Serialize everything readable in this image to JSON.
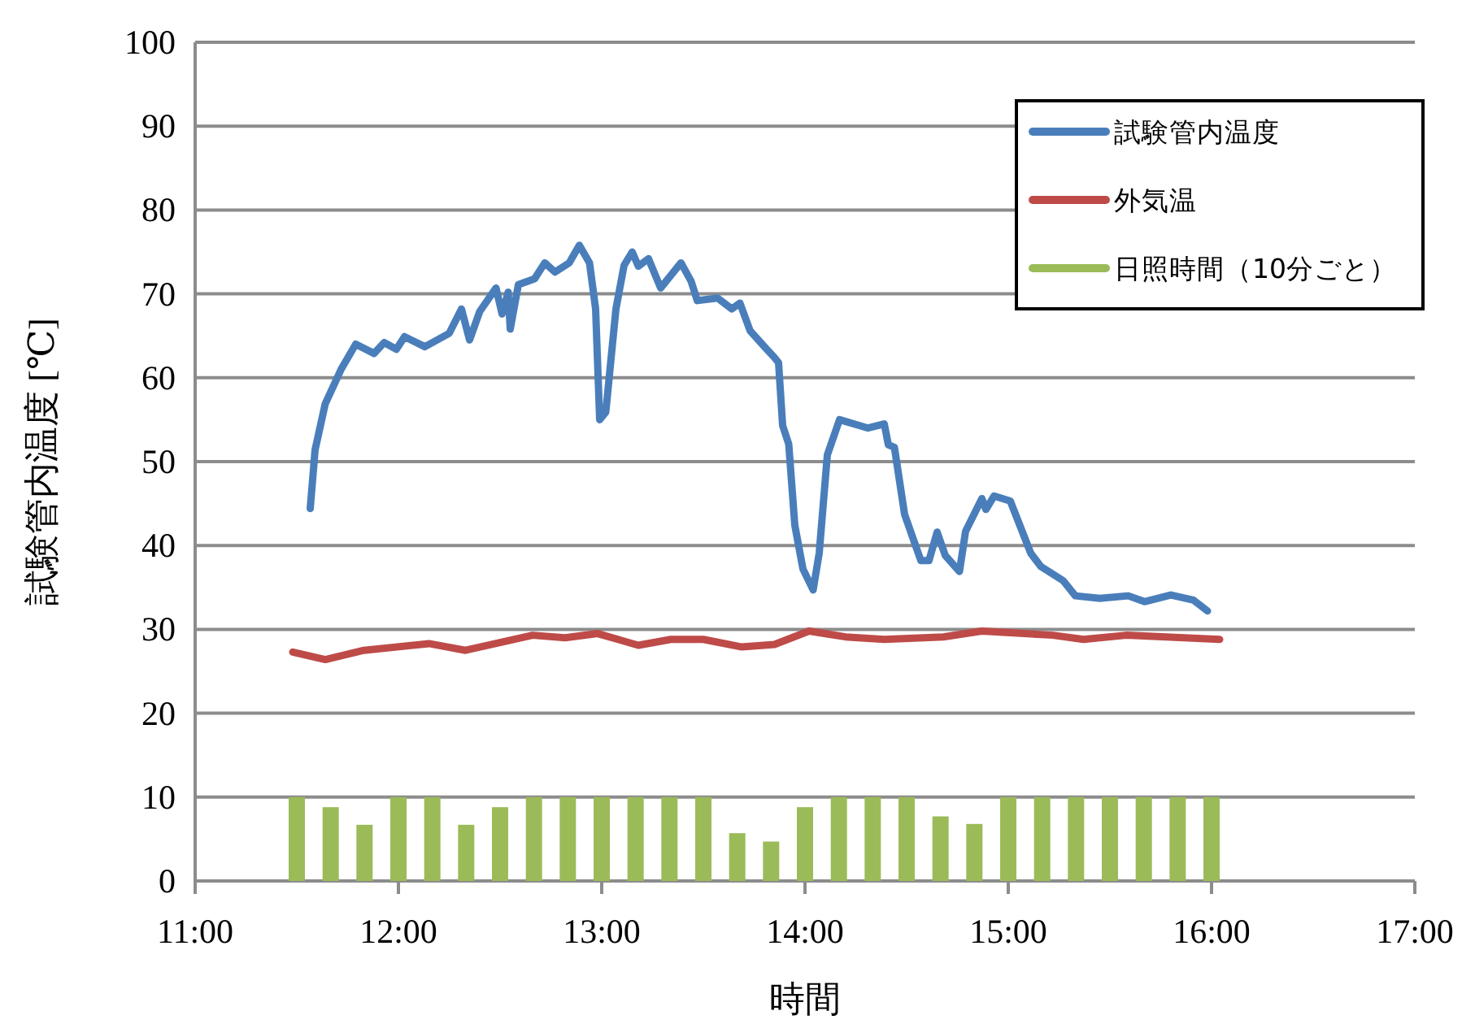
{
  "chart_data": {
    "type": "line",
    "xlabel": "時間",
    "ylabel": "試験管内温度 [℃]",
    "xlim": [
      11,
      17
    ],
    "ylim": [
      0,
      100
    ],
    "xticks": [
      {
        "value": 11,
        "label": "11:00"
      },
      {
        "value": 12,
        "label": "12:00"
      },
      {
        "value": 13,
        "label": "13:00"
      },
      {
        "value": 14,
        "label": "14:00"
      },
      {
        "value": 15,
        "label": "15:00"
      },
      {
        "value": 16,
        "label": "16:00"
      },
      {
        "value": 17,
        "label": "17:00"
      }
    ],
    "yticks": [
      0,
      10,
      20,
      30,
      40,
      50,
      60,
      70,
      80,
      90,
      100
    ],
    "grid": "y",
    "legend": "top right",
    "series": [
      {
        "name": "試験管内温度",
        "color": "#4a7ebb",
        "x": [
          11.566,
          11.59,
          11.64,
          11.72,
          11.79,
          11.88,
          11.93,
          11.99,
          12.03,
          12.13,
          12.25,
          12.31,
          12.35,
          12.4,
          12.48,
          12.51,
          12.54,
          12.55,
          12.59,
          12.67,
          12.72,
          12.77,
          12.84,
          12.89,
          12.94,
          12.97,
          12.99,
          13.02,
          13.07,
          13.11,
          13.15,
          13.18,
          13.23,
          13.29,
          13.39,
          13.44,
          13.47,
          13.57,
          13.64,
          13.68,
          13.73,
          13.8,
          13.85,
          13.87,
          13.89,
          13.92,
          13.95,
          13.99,
          14.04,
          14.07,
          14.11,
          14.17,
          14.31,
          14.39,
          14.41,
          14.44,
          14.49,
          14.57,
          14.61,
          14.65,
          14.69,
          14.76,
          14.79,
          14.87,
          14.89,
          14.93,
          15.01,
          15.11,
          15.16,
          15.27,
          15.33,
          15.45,
          15.59,
          15.67,
          15.8,
          15.91,
          15.98
        ],
        "values": [
          44.4,
          51.4,
          56.9,
          61.1,
          64.0,
          62.9,
          64.2,
          63.4,
          64.9,
          63.7,
          65.3,
          68.2,
          64.5,
          67.9,
          70.7,
          67.6,
          70.2,
          65.8,
          71.1,
          71.8,
          73.7,
          72.6,
          73.7,
          75.8,
          73.7,
          68.2,
          55.0,
          55.9,
          68.2,
          73.4,
          75.0,
          73.3,
          74.2,
          70.7,
          73.7,
          71.5,
          69.2,
          69.5,
          68.2,
          68.9,
          65.6,
          63.7,
          62.4,
          61.8,
          54.3,
          52.1,
          42.4,
          37.2,
          34.7,
          39.1,
          50.8,
          55.0,
          54.0,
          54.5,
          52.0,
          51.7,
          43.7,
          38.2,
          38.2,
          41.6,
          38.8,
          36.9,
          41.7,
          45.6,
          44.3,
          45.9,
          45.3,
          39.1,
          37.5,
          35.8,
          34.0,
          33.7,
          34.0,
          33.3,
          34.1,
          33.5,
          32.2
        ]
      },
      {
        "name": "外気温",
        "color": "#be4b48",
        "x": [
          11.48,
          11.64,
          11.83,
          12.15,
          12.33,
          12.66,
          12.82,
          12.98,
          13.18,
          13.34,
          13.5,
          13.69,
          13.85,
          14.02,
          14.2,
          14.39,
          14.68,
          14.87,
          15.22,
          15.37,
          15.58,
          16.04
        ],
        "values": [
          27.3,
          26.4,
          27.5,
          28.3,
          27.5,
          29.3,
          29.0,
          29.5,
          28.1,
          28.8,
          28.8,
          27.9,
          28.2,
          29.8,
          29.1,
          28.8,
          29.1,
          29.8,
          29.3,
          28.8,
          29.3,
          28.8
        ]
      },
      {
        "name": "日照時間（10分ごと）",
        "type": "bar",
        "color": "#9bbb59",
        "x": [
          11.5,
          11.6667,
          11.8333,
          12,
          12.1667,
          12.3333,
          12.5,
          12.6667,
          12.8333,
          13,
          13.1667,
          13.3333,
          13.5,
          13.6667,
          13.8333,
          14,
          14.1667,
          14.3333,
          14.5,
          14.6667,
          14.8333,
          15,
          15.1667,
          15.3333,
          15.5,
          15.6667,
          15.8333,
          16
        ],
        "values": [
          10,
          8.8,
          6.7,
          10,
          10,
          6.7,
          8.8,
          10,
          10,
          10,
          10,
          10,
          10,
          5.7,
          4.7,
          8.8,
          10,
          10,
          10,
          7.7,
          6.8,
          10,
          10,
          10,
          10,
          10,
          10,
          10
        ]
      }
    ]
  }
}
